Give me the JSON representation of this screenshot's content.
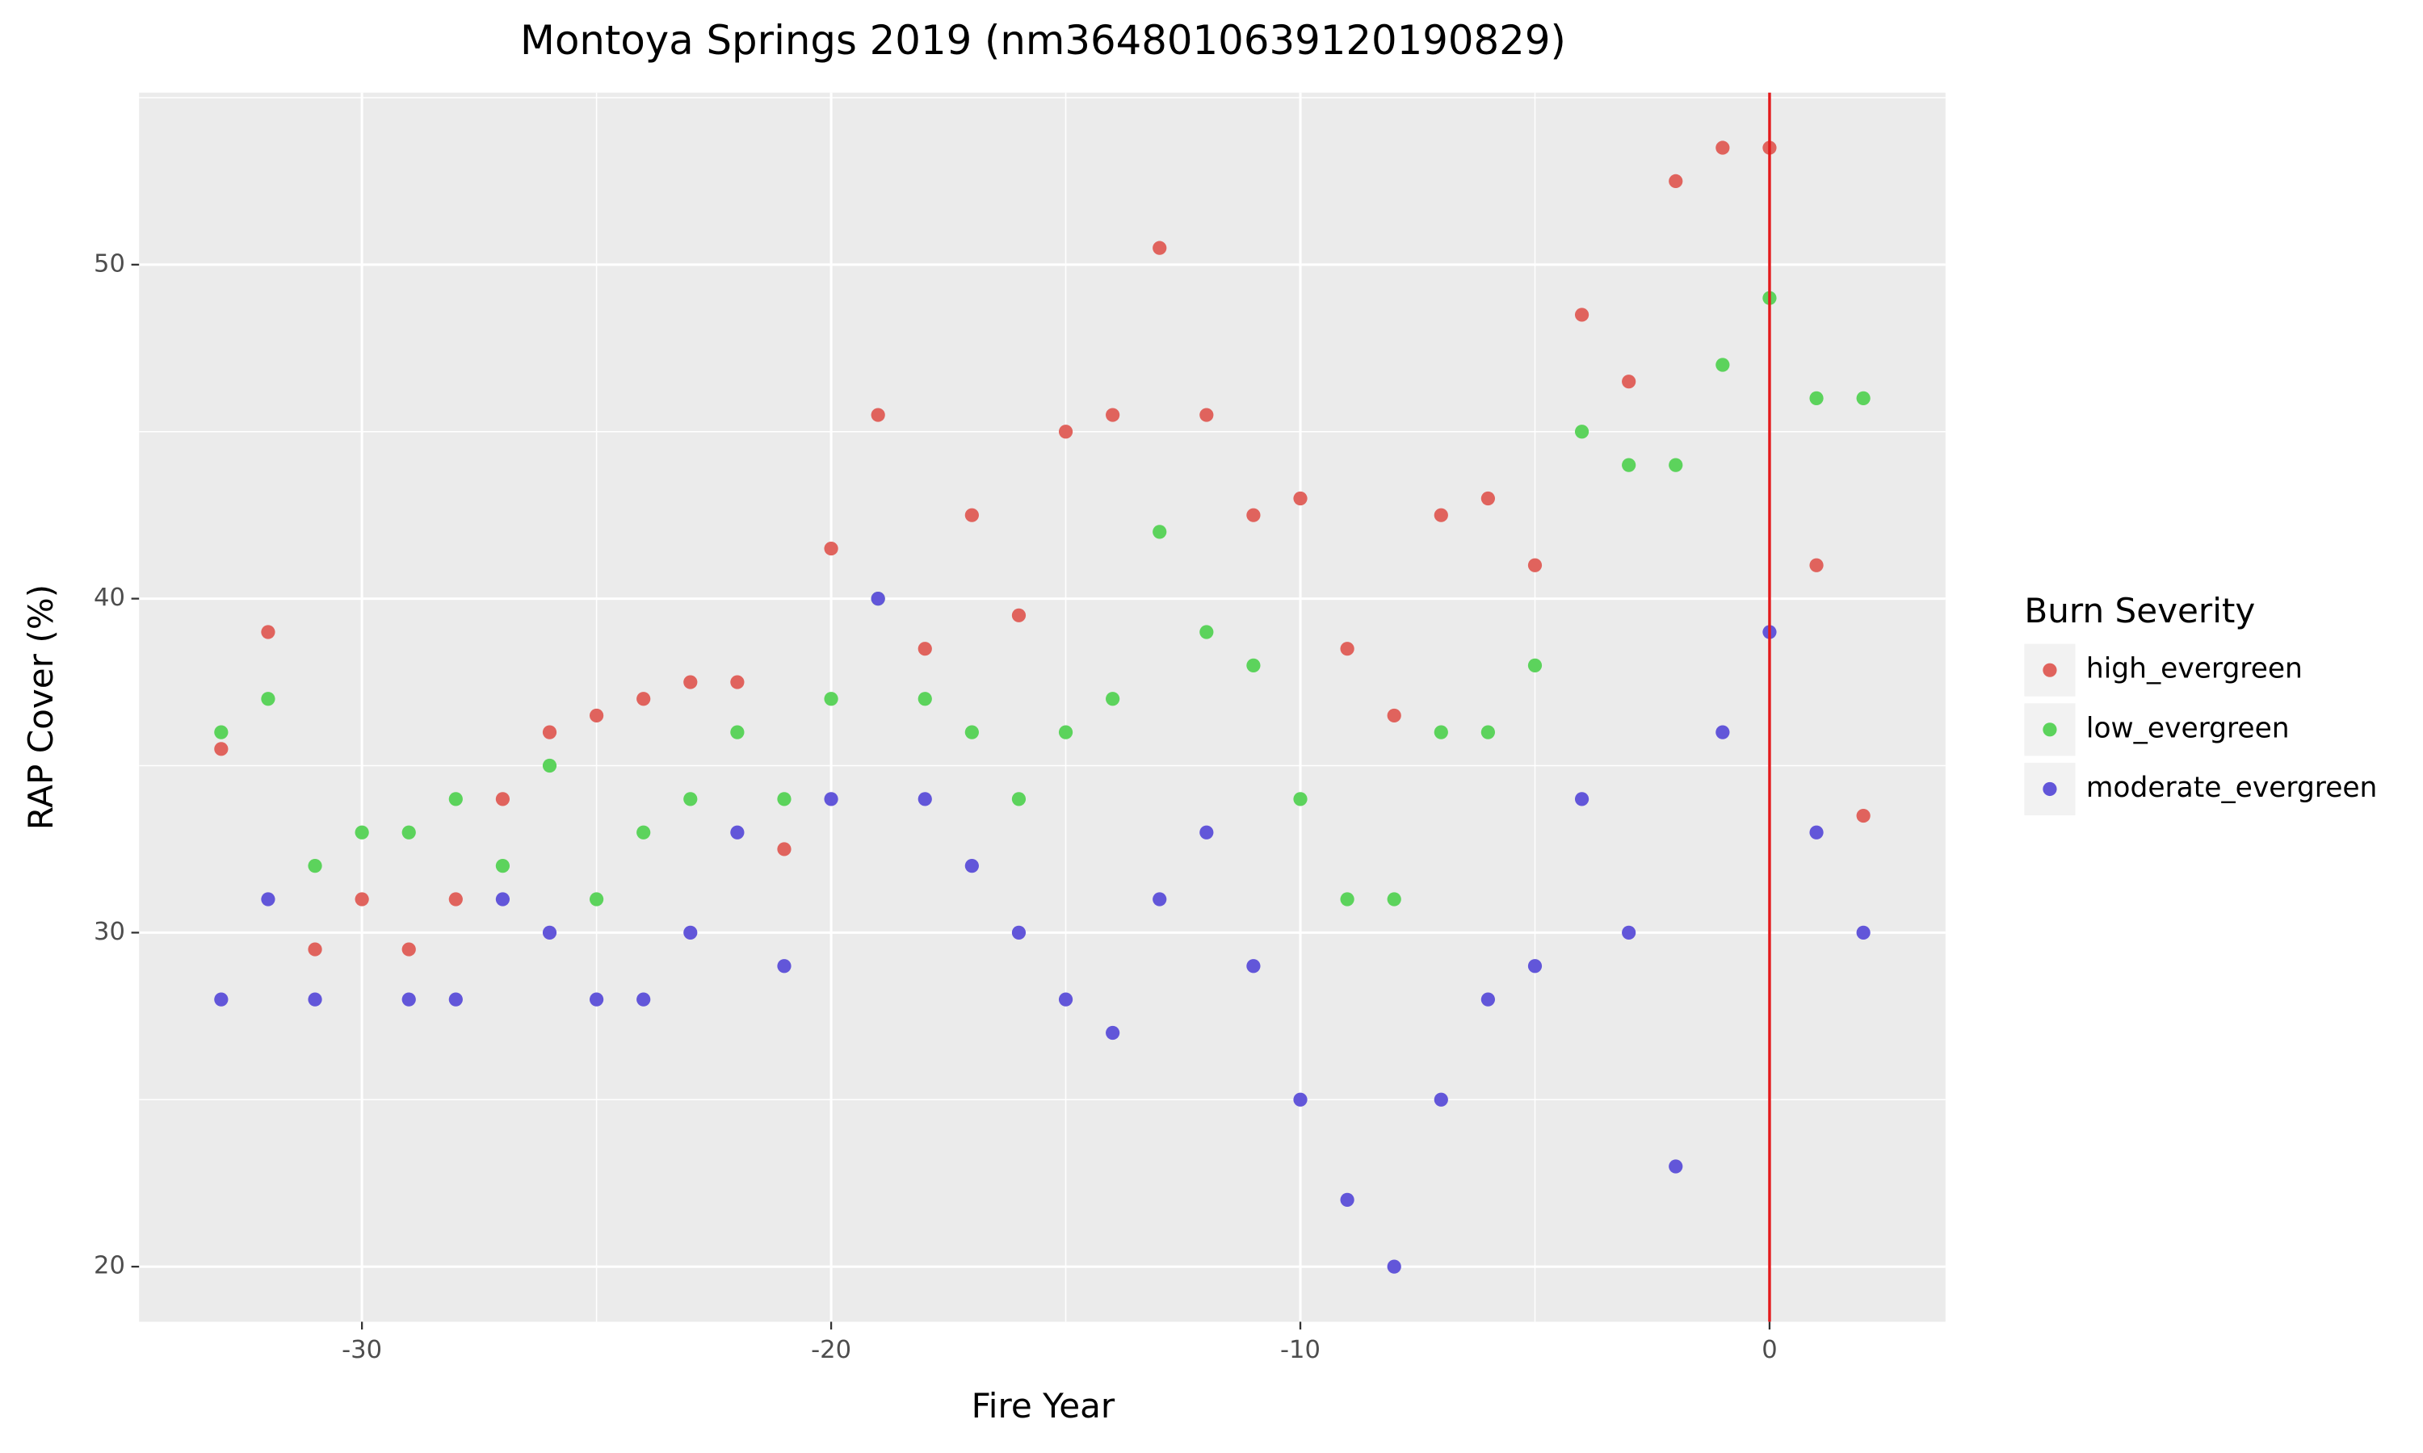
{
  "chart_data": {
    "type": "scatter",
    "title": "Montoya Springs 2019 (nm3648010639120190829)",
    "x_label": "Fire Year",
    "y_label": "RAP Cover (%)",
    "legend_title": "Burn Severity",
    "legend_position": "right",
    "x": [
      -33,
      -32,
      -31,
      -30,
      -29,
      -28,
      -27,
      -26,
      -25,
      -24,
      -23,
      -22,
      -21,
      -20,
      -19,
      -18,
      -17,
      -16,
      -15,
      -14,
      -13,
      -12,
      -11,
      -10,
      -9,
      -8,
      -7,
      -6,
      -5,
      -4,
      -3,
      -2,
      -1,
      0,
      1,
      2
    ],
    "series": [
      {
        "name": "high_evergreen",
        "color": "#e0635d",
        "values": [
          35.5,
          39,
          29.5,
          31,
          29.5,
          31,
          34,
          36,
          36.5,
          37,
          37.5,
          37.5,
          32.5,
          41.5,
          45.5,
          38.5,
          42.5,
          39.5,
          45,
          45.5,
          50.5,
          45.5,
          42.5,
          43,
          38.5,
          36.5,
          42.5,
          43,
          41,
          48.5,
          46.5,
          52.5,
          53.5,
          53.5,
          41,
          33.5
        ]
      },
      {
        "name": "low_evergreen",
        "color": "#5cd35c",
        "values": [
          36,
          37,
          32,
          33,
          33,
          34,
          32,
          35,
          31,
          33,
          34,
          36,
          34,
          37,
          40,
          37,
          36,
          34,
          36,
          37,
          42,
          39,
          38,
          34,
          31,
          31,
          36,
          36,
          38,
          45,
          44,
          44,
          47,
          49,
          46,
          46
        ]
      },
      {
        "name": "moderate_evergreen",
        "color": "#6256d9",
        "values": [
          28,
          31,
          28,
          null,
          28,
          28,
          31,
          30,
          28,
          28,
          30,
          33,
          29,
          34,
          40,
          34,
          32,
          30,
          28,
          27,
          31,
          33,
          29,
          25,
          22,
          20,
          25,
          28,
          29,
          34,
          30,
          23,
          36,
          39,
          33,
          30
        ]
      }
    ],
    "xlim": [
      -34.75,
      3.75
    ],
    "ylim": [
      18.35,
      55.15
    ],
    "xticks": [
      -30,
      -20,
      -10,
      0
    ],
    "yticks": [
      20,
      30,
      40,
      50
    ],
    "minor_xticks": [
      -25,
      -15,
      -5
    ],
    "minor_yticks": [
      25,
      35,
      45,
      55
    ],
    "grid": true,
    "vline": {
      "x": 0,
      "color": "#e31a1c"
    }
  }
}
